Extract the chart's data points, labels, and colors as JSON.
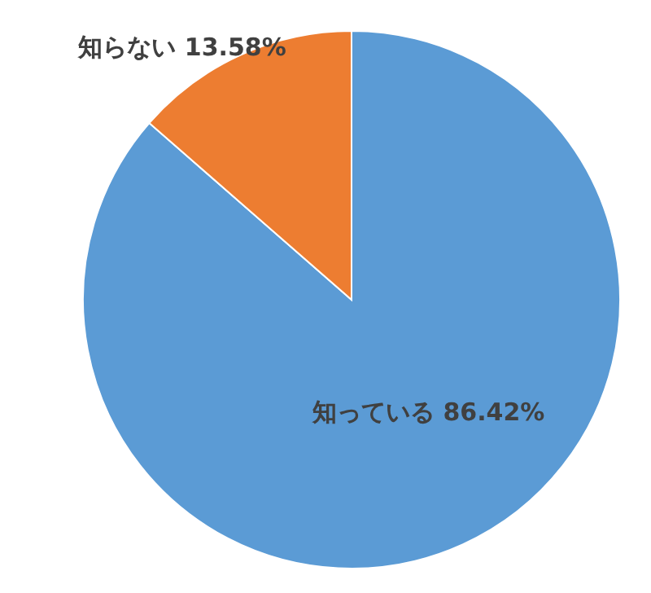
{
  "chart_data": {
    "type": "pie",
    "categories": [
      "知っている",
      "知らない"
    ],
    "values": [
      86.42,
      13.58
    ],
    "colors": [
      "#5b9bd5",
      "#ed7d31"
    ],
    "value_labels": [
      "86.42%",
      "13.58%"
    ]
  }
}
